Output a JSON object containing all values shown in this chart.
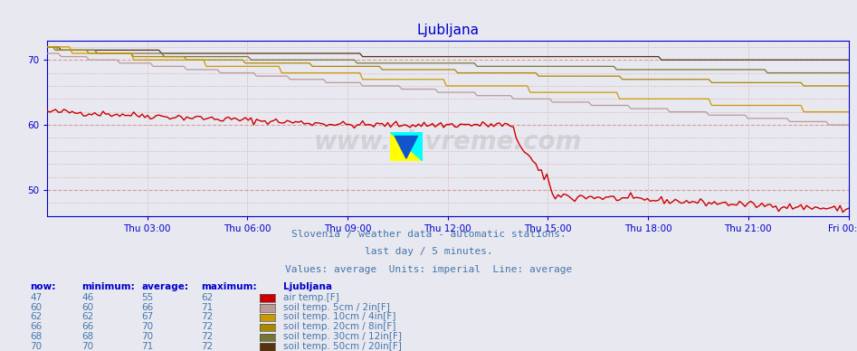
{
  "title": "Ljubljana",
  "subtitle1": "Slovenia / weather data - automatic stations.",
  "subtitle2": "last day / 5 minutes.",
  "subtitle3": "Values: average  Units: imperial  Line: average",
  "xlabel_ticks": [
    "Thu 03:00",
    "Thu 06:00",
    "Thu 09:00",
    "Thu 12:00",
    "Thu 15:00",
    "Thu 18:00",
    "Thu 21:00",
    "Fri 00:00"
  ],
  "xlabel_tick_positions": [
    0.125,
    0.25,
    0.375,
    0.5,
    0.625,
    0.75,
    0.875,
    1.0
  ],
  "ylim": [
    46,
    73
  ],
  "yticks": [
    50,
    60,
    70
  ],
  "bg_color": "#e8e8f0",
  "grid_color_major": "#dd9999",
  "grid_color_minor": "#ddbbbb",
  "title_color": "#0000cc",
  "subtitle_color": "#4477aa",
  "axis_color": "#0000cc",
  "tick_color": "#0000cc",
  "watermark": "www.si-vreme.com",
  "legend_colors": {
    "air_temp": "#cc0000",
    "soil_5cm": "#bb9999",
    "soil_10cm": "#cc9900",
    "soil_20cm": "#aa8800",
    "soil_30cm": "#777733",
    "soil_50cm": "#553311"
  },
  "series": {
    "air_temp": {
      "label": "air temp.[F]",
      "now": 47,
      "min": 46,
      "avg": 55,
      "max": 62
    },
    "soil_5cm": {
      "label": "soil temp. 5cm / 2in[F]",
      "now": 60,
      "min": 60,
      "avg": 66,
      "max": 71
    },
    "soil_10cm": {
      "label": "soil temp. 10cm / 4in[F]",
      "now": 62,
      "min": 62,
      "avg": 67,
      "max": 72
    },
    "soil_20cm": {
      "label": "soil temp. 20cm / 8in[F]",
      "now": 66,
      "min": 66,
      "avg": 70,
      "max": 72
    },
    "soil_30cm": {
      "label": "soil temp. 30cm / 12in[F]",
      "now": 68,
      "min": 68,
      "avg": 70,
      "max": 72
    },
    "soil_50cm": {
      "label": "soil temp. 50cm / 20in[F]",
      "now": 70,
      "min": 70,
      "avg": 71,
      "max": 72
    }
  },
  "n_points": 288
}
